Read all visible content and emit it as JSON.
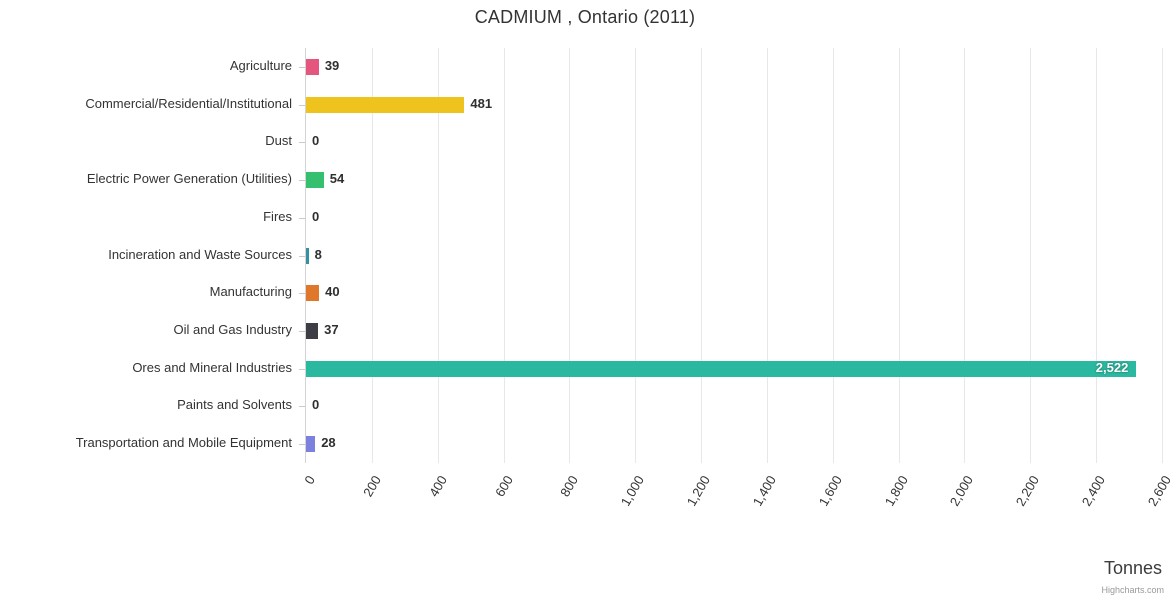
{
  "title": "CADMIUM , Ontario (2011)",
  "chart_data": {
    "type": "bar",
    "title": "CADMIUM , Ontario (2011)",
    "xlabel": "Tonnes",
    "ylabel": "",
    "xlim": [
      0,
      2600
    ],
    "grid": true,
    "legend": "none",
    "categories": [
      "Agriculture",
      "Commercial/Residential/Institutional",
      "Dust",
      "Electric Power Generation (Utilities)",
      "Fires",
      "Incineration and Waste Sources",
      "Manufacturing",
      "Oil and Gas Industry",
      "Ores and Mineral Industries",
      "Paints and Solvents",
      "Transportation and Mobile Equipment"
    ],
    "values": [
      39,
      481,
      0,
      54,
      0,
      8,
      40,
      37,
      2522,
      0,
      28
    ],
    "value_labels": [
      "39",
      "481",
      "0",
      "54",
      "0",
      "8",
      "40",
      "37",
      "2,522",
      "0",
      "28"
    ],
    "bar_colors": [
      "#e4567e",
      "#eec31d",
      "#999999",
      "#35c06f",
      "#999999",
      "#35919e",
      "#e0782c",
      "#3d3d46",
      "#2bb8a0",
      "#999999",
      "#7d81de"
    ],
    "label_inside_index": 8,
    "x_tick_labels": [
      "0",
      "200",
      "400",
      "600",
      "800",
      "1,000",
      "1,200",
      "1,400",
      "1,600",
      "1,800",
      "2,000",
      "2,200",
      "2,400",
      "2,600"
    ],
    "x_tick_values": [
      0,
      200,
      400,
      600,
      800,
      1000,
      1200,
      1400,
      1600,
      1800,
      2000,
      2200,
      2400,
      2600
    ]
  },
  "credits": "Highcharts.com",
  "colors": {
    "grid": "#e7e7e7",
    "axis": "#d4d4d4",
    "text": "#333333",
    "inside_label": "#ffffff"
  }
}
